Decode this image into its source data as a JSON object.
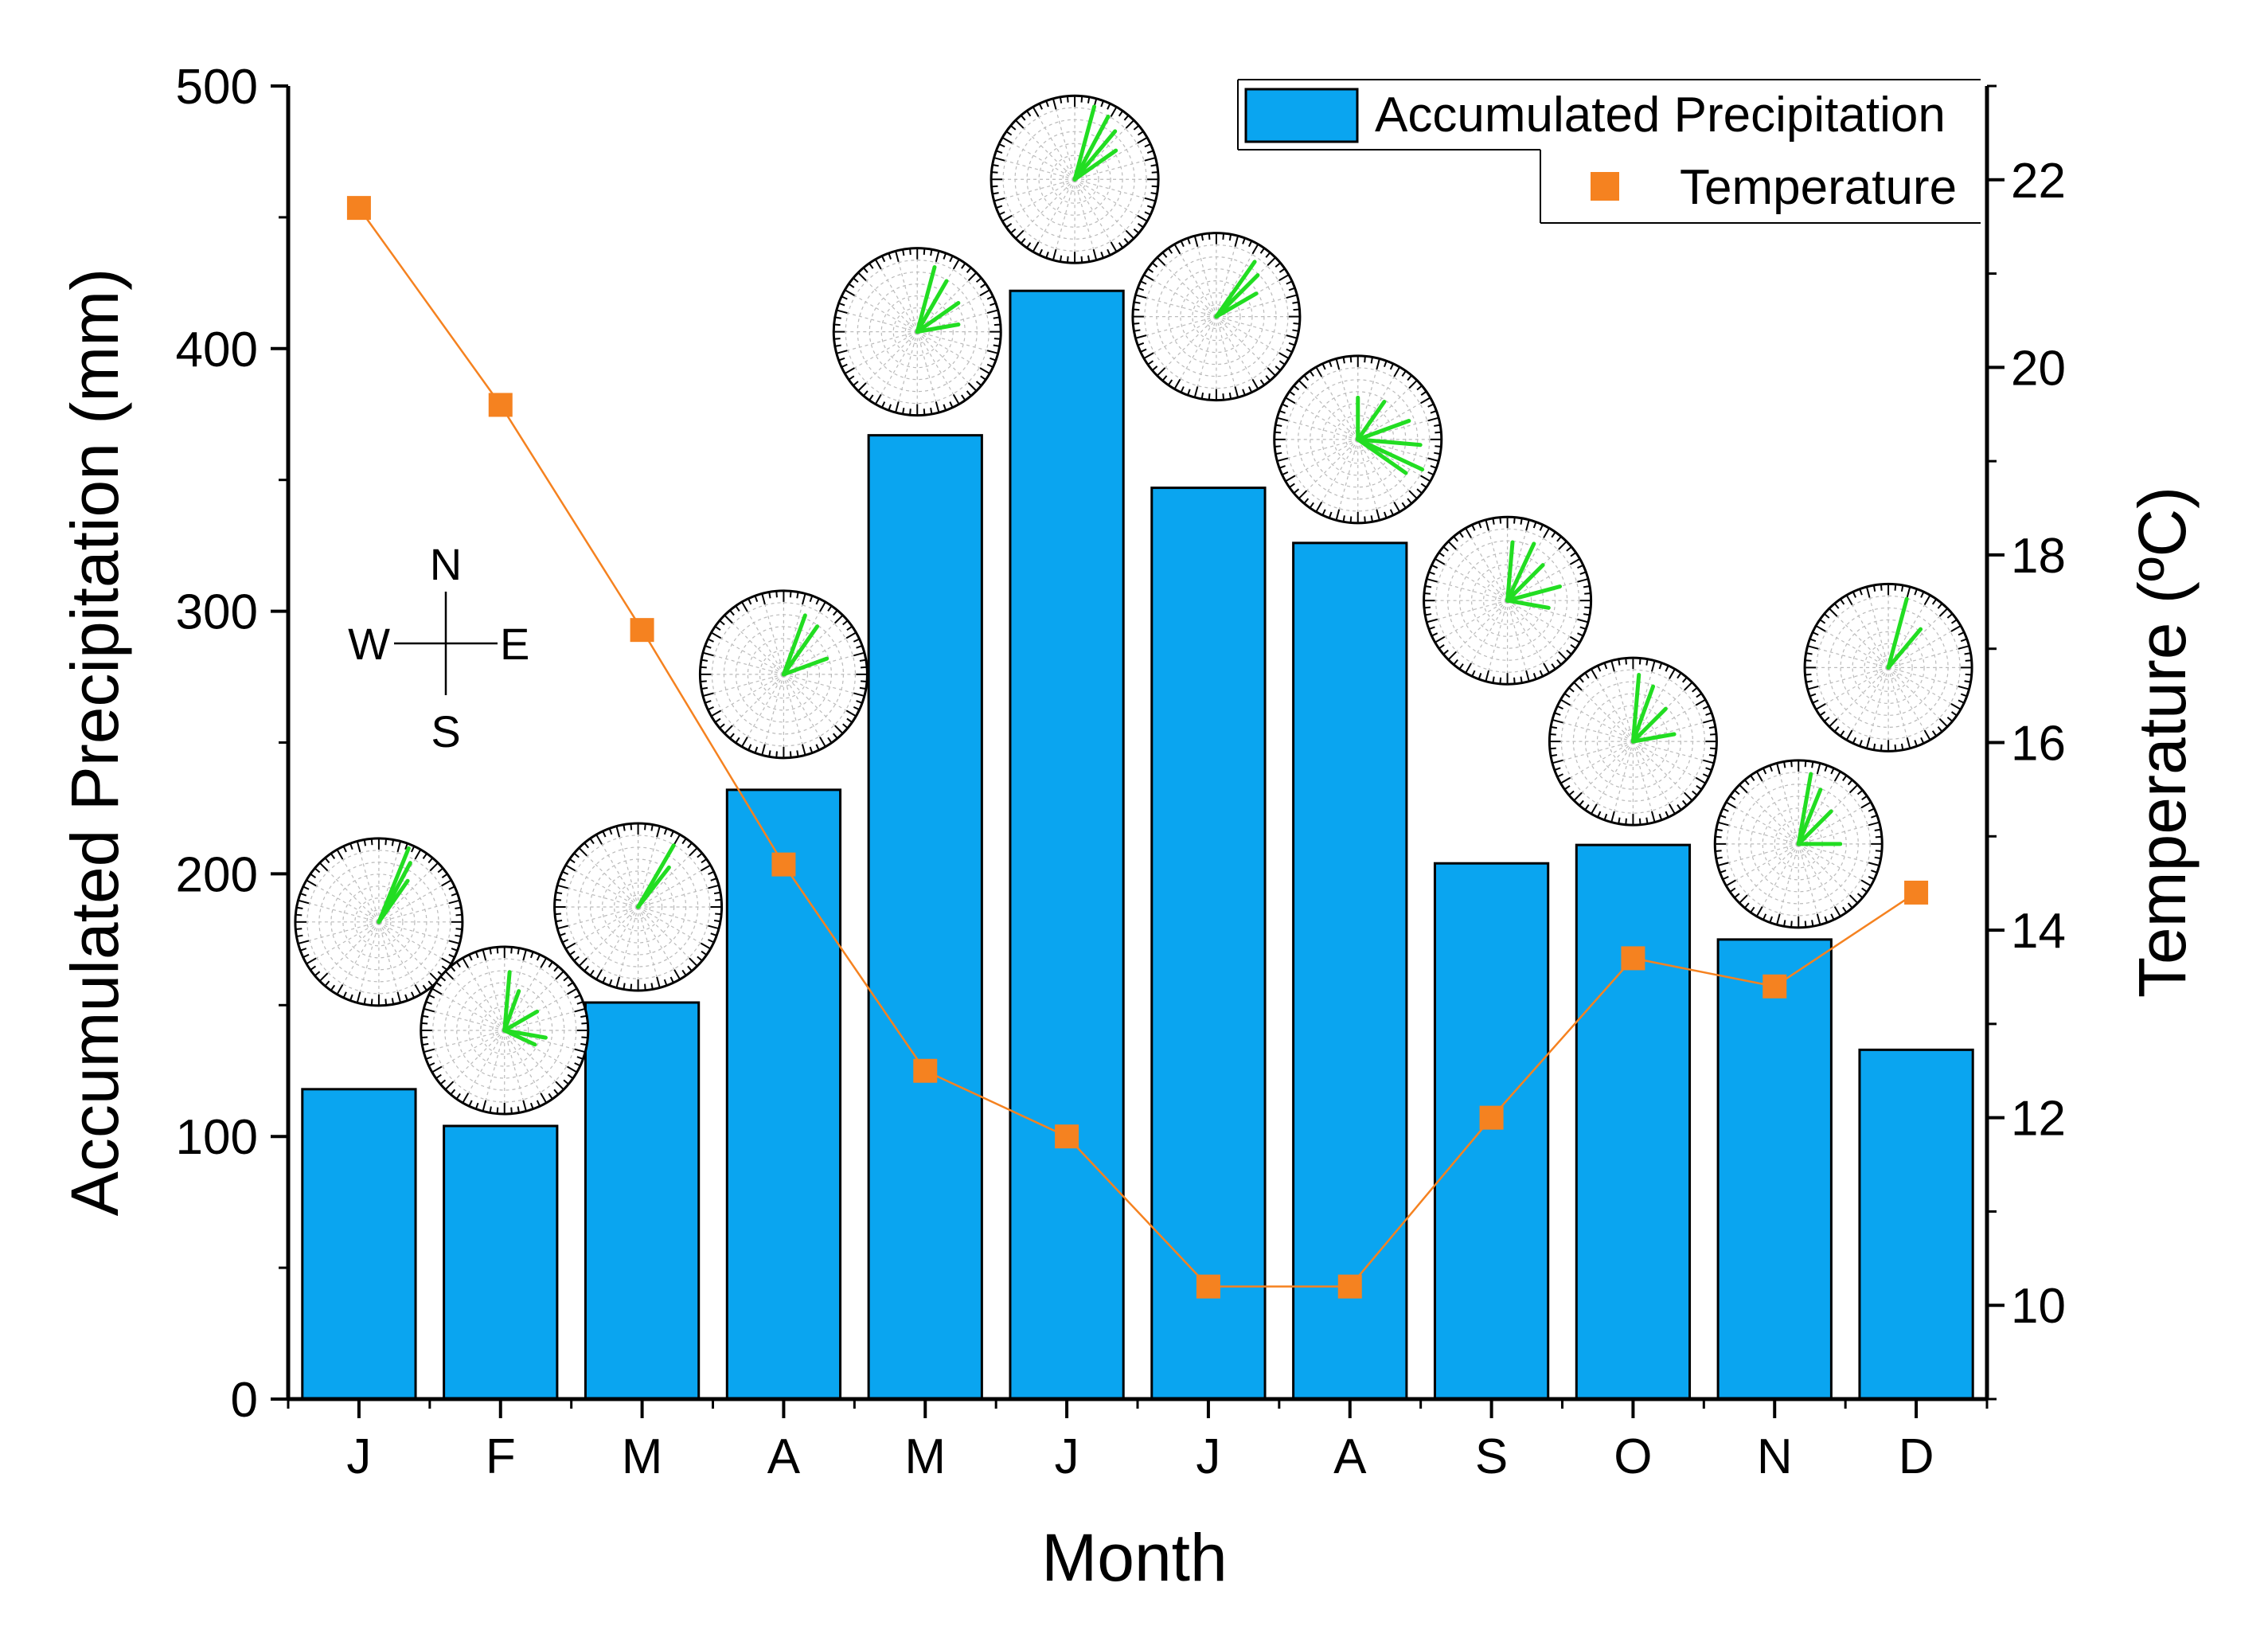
{
  "chart_data": {
    "type": "bar",
    "title": "",
    "xlabel": "Month",
    "ylabel": "Accumulated Precipitation (mm)",
    "y2label": "Temperature (ºC)",
    "categories": [
      "J",
      "F",
      "M",
      "A",
      "M",
      "J",
      "J",
      "A",
      "S",
      "O",
      "N",
      "D"
    ],
    "ylim": [
      0,
      500
    ],
    "y2lim": [
      9,
      23
    ],
    "yticks": [
      0,
      100,
      200,
      300,
      400,
      500
    ],
    "y2ticks": [
      10,
      12,
      14,
      16,
      18,
      20,
      22
    ],
    "legend_position": "top-right",
    "series": [
      {
        "name": "Accumulated Precipitation",
        "kind": "bar",
        "axis": "left",
        "color": "#0aa5f0",
        "values": [
          118,
          104,
          151,
          232,
          367,
          422,
          347,
          326,
          204,
          211,
          175,
          133
        ]
      },
      {
        "name": "Temperature",
        "kind": "line",
        "axis": "right",
        "color": "#f58220",
        "values": [
          21.7,
          19.6,
          17.2,
          14.7,
          12.5,
          11.8,
          10.2,
          10.2,
          12.0,
          13.7,
          13.4,
          14.4
        ]
      }
    ],
    "wind_roses": {
      "note": "dominant wind direction rays per month (degrees clockwise from north, relative length 0-1)",
      "color": "#22dd22",
      "months": [
        {
          "month": "J",
          "rays": [
            [
              22,
              0.95
            ],
            [
              28,
              0.8
            ],
            [
              35,
              0.6
            ]
          ]
        },
        {
          "month": "F",
          "rays": [
            [
              5,
              0.7
            ],
            [
              20,
              0.5
            ],
            [
              60,
              0.45
            ],
            [
              100,
              0.5
            ],
            [
              115,
              0.4
            ]
          ]
        },
        {
          "month": "M",
          "rays": [
            [
              30,
              0.85
            ],
            [
              38,
              0.6
            ]
          ]
        },
        {
          "month": "A",
          "rays": [
            [
              20,
              0.75
            ],
            [
              35,
              0.7
            ],
            [
              70,
              0.55
            ]
          ]
        },
        {
          "month": "M",
          "rays": [
            [
              15,
              0.8
            ],
            [
              30,
              0.7
            ],
            [
              55,
              0.6
            ],
            [
              80,
              0.5
            ]
          ]
        },
        {
          "month": "J",
          "rays": [
            [
              15,
              0.9
            ],
            [
              28,
              0.85
            ],
            [
              40,
              0.75
            ],
            [
              55,
              0.6
            ]
          ]
        },
        {
          "month": "J",
          "rays": [
            [
              35,
              0.8
            ],
            [
              45,
              0.7
            ],
            [
              60,
              0.55
            ]
          ]
        },
        {
          "month": "A",
          "rays": [
            [
              0,
              0.5
            ],
            [
              35,
              0.55
            ],
            [
              70,
              0.65
            ],
            [
              95,
              0.75
            ],
            [
              115,
              0.85
            ],
            [
              125,
              0.7
            ]
          ]
        },
        {
          "month": "S",
          "rays": [
            [
              5,
              0.7
            ],
            [
              25,
              0.75
            ],
            [
              45,
              0.6
            ],
            [
              75,
              0.65
            ],
            [
              100,
              0.5
            ]
          ]
        },
        {
          "month": "O",
          "rays": [
            [
              5,
              0.8
            ],
            [
              20,
              0.7
            ],
            [
              45,
              0.55
            ],
            [
              80,
              0.5
            ]
          ]
        },
        {
          "month": "N",
          "rays": [
            [
              10,
              0.85
            ],
            [
              22,
              0.7
            ],
            [
              45,
              0.55
            ],
            [
              90,
              0.5
            ]
          ]
        },
        {
          "month": "D",
          "rays": [
            [
              15,
              0.85
            ],
            [
              40,
              0.6
            ]
          ]
        }
      ]
    },
    "compass": {
      "north": "N",
      "south": "S",
      "east": "E",
      "west": "W"
    }
  }
}
